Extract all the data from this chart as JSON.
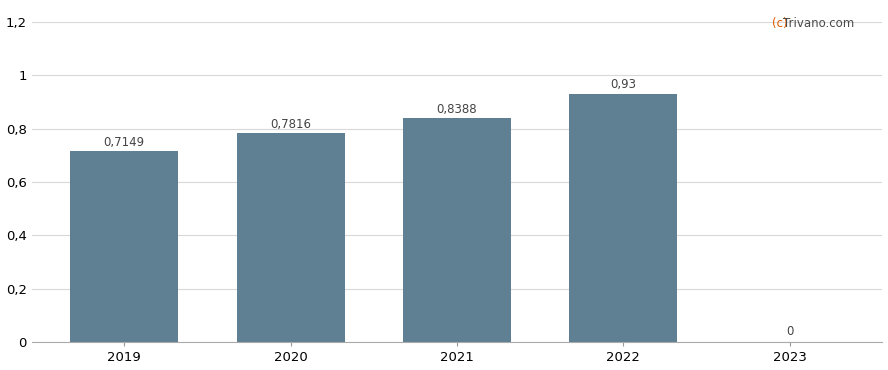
{
  "categories": [
    "2019",
    "2020",
    "2021",
    "2022",
    "2023"
  ],
  "values": [
    0.7149,
    0.7816,
    0.8388,
    0.93,
    0.0
  ],
  "labels": [
    "0,7149",
    "0,7816",
    "0,8388",
    "0,93",
    "0"
  ],
  "bar_color": "#5f7f93",
  "background_color": "#ffffff",
  "ylim": [
    0,
    1.2
  ],
  "yticks": [
    0,
    0.2,
    0.4,
    0.6,
    0.8,
    1.0,
    1.2
  ],
  "ytick_labels": [
    "0",
    "0,2",
    "0,4",
    "0,6",
    "0,8",
    "1",
    "1,2"
  ],
  "grid_color": "#d8d8d8",
  "watermark_color_c": "#e05a00",
  "watermark_color_rest": "#4a4a4a",
  "label_fontsize": 8.5,
  "tick_fontsize": 9.5,
  "watermark_fontsize": 8.5,
  "bar_width": 0.65
}
